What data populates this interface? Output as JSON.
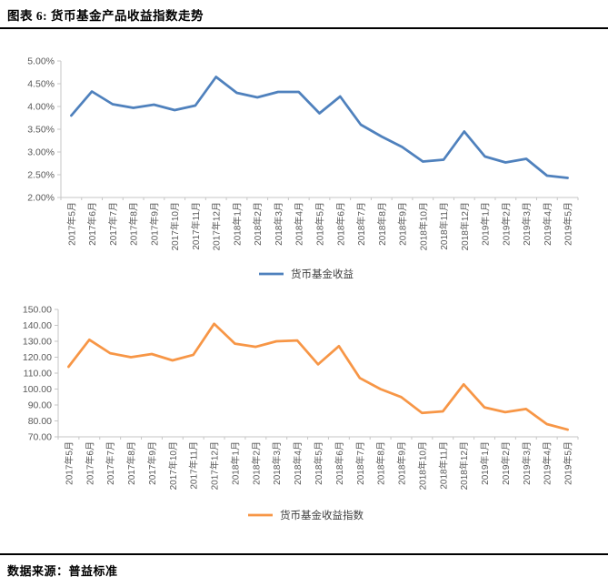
{
  "header": {
    "title": "图表 6: 货币基金产品收益指数走势"
  },
  "footer": {
    "source_label": "数据来源：普益标准"
  },
  "colors": {
    "series_blue": "#4F81BD",
    "series_orange": "#F79646",
    "axis_line": "#C6C6C6",
    "tick_text": "#595959",
    "legend_text": "#404040",
    "divider": "#000000"
  },
  "chart_data": [
    {
      "type": "line",
      "categories": [
        "2017年5月",
        "2017年6月",
        "2017年7月",
        "2017年8月",
        "2017年9月",
        "2017年10月",
        "2017年11月",
        "2017年12月",
        "2018年1月",
        "2018年2月",
        "2018年3月",
        "2018年4月",
        "2018年5月",
        "2018年6月",
        "2018年7月",
        "2018年8月",
        "2018年9月",
        "2018年10月",
        "2018年11月",
        "2018年12月",
        "2019年1月",
        "2019年2月",
        "2019年3月",
        "2019年4月",
        "2019年5月"
      ],
      "series": [
        {
          "name": "货币基金收益",
          "color": "#4F81BD",
          "values": [
            3.8,
            4.33,
            4.05,
            3.97,
            4.04,
            3.92,
            4.02,
            4.65,
            4.3,
            4.2,
            4.32,
            4.32,
            3.85,
            4.22,
            3.6,
            3.34,
            3.11,
            2.79,
            2.83,
            3.45,
            2.9,
            2.77,
            2.85,
            2.48,
            2.43
          ]
        }
      ],
      "ylim": [
        2.0,
        5.0
      ],
      "ytick_values": [
        5.0,
        4.5,
        4.0,
        3.5,
        3.0,
        2.5,
        2.0
      ],
      "ytick_labels": [
        "5.00%",
        "4.50%",
        "4.00%",
        "3.50%",
        "3.00%",
        "2.50%",
        "2.00%"
      ],
      "xlabel": "",
      "ylabel": "",
      "grid": false,
      "legend_position": "bottom"
    },
    {
      "type": "line",
      "categories": [
        "2017年5月",
        "2017年6月",
        "2017年7月",
        "2017年8月",
        "2017年9月",
        "2017年10月",
        "2017年11月",
        "2017年12月",
        "2018年1月",
        "2018年2月",
        "2018年3月",
        "2018年4月",
        "2018年5月",
        "2018年6月",
        "2018年7月",
        "2018年8月",
        "2018年9月",
        "2018年10月",
        "2018年11月",
        "2018年12月",
        "2019年1月",
        "2019年2月",
        "2019年3月",
        "2019年4月",
        "2019年5月"
      ],
      "series": [
        {
          "name": "货币基金收益指数",
          "color": "#F79646",
          "values": [
            114,
            131,
            122.5,
            120,
            122,
            118,
            121.5,
            141,
            128.5,
            126.5,
            130,
            130.5,
            115.5,
            127,
            107,
            100,
            95,
            85,
            86,
            103,
            88.5,
            85.5,
            87.5,
            78,
            74.5
          ]
        }
      ],
      "ylim": [
        70,
        150
      ],
      "ytick_values": [
        150,
        140,
        130,
        120,
        110,
        100,
        90,
        80,
        70
      ],
      "ytick_labels": [
        "150.00",
        "140.00",
        "130.00",
        "120.00",
        "110.00",
        "100.00",
        "90.00",
        "80.00",
        "70.00"
      ],
      "xlabel": "",
      "ylabel": "",
      "grid": false,
      "legend_position": "bottom"
    }
  ]
}
